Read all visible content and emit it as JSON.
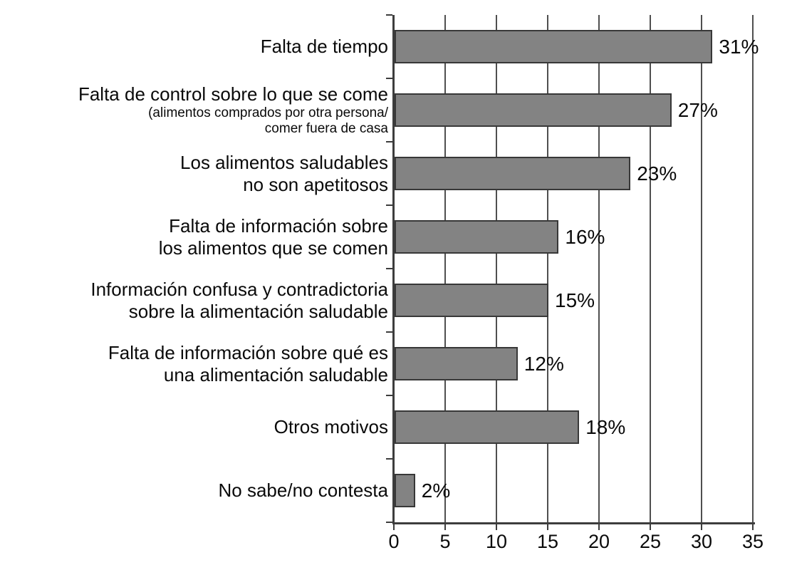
{
  "chart_data": {
    "type": "bar",
    "orientation": "horizontal",
    "title": "",
    "xlabel": "",
    "ylabel": "",
    "xlim": [
      0,
      35
    ],
    "x_ticks": [
      0,
      5,
      10,
      15,
      20,
      25,
      30,
      35
    ],
    "grid": true,
    "legend_position": "none",
    "colors": {
      "bar_fill": "#838383",
      "bar_border": "#383838",
      "axis": "#3d3d3d",
      "gridline": "#4f4f4f",
      "text": "#0a0a0a",
      "background": "#ffffff"
    },
    "categories": [
      "Falta de tiempo",
      "Falta de control sobre lo que se come (alimentos comprados por otra persona/ comer fuera de casa",
      "Los alimentos saludables no son apetitosos",
      "Falta de información sobre los alimentos que se comen",
      "Información confusa y contradictoria sobre la alimentación saludable",
      "Falta de información sobre qué es una alimentación saludable",
      "Otros motivos",
      "No sabe/no contesta"
    ],
    "values": [
      31,
      27,
      23,
      16,
      15,
      12,
      18,
      2
    ],
    "bars": [
      {
        "label_lines": [
          "Falta de tiempo"
        ],
        "sub_label_lines": [],
        "value": 31,
        "value_label": "31%"
      },
      {
        "label_lines": [
          "Falta de control sobre lo que se come"
        ],
        "sub_label_lines": [
          "(alimentos comprados por otra persona/",
          "comer fuera de casa"
        ],
        "value": 27,
        "value_label": "27%"
      },
      {
        "label_lines": [
          "Los alimentos saludables",
          "no son apetitosos"
        ],
        "sub_label_lines": [],
        "value": 23,
        "value_label": "23%"
      },
      {
        "label_lines": [
          "Falta de información sobre",
          "los alimentos que se comen"
        ],
        "sub_label_lines": [],
        "value": 16,
        "value_label": "16%"
      },
      {
        "label_lines": [
          "Información confusa y contradictoria",
          "sobre la alimentación saludable"
        ],
        "sub_label_lines": [],
        "value": 15,
        "value_label": "15%"
      },
      {
        "label_lines": [
          "Falta de información sobre qué es",
          "una alimentación saludable"
        ],
        "sub_label_lines": [],
        "value": 12,
        "value_label": "12%"
      },
      {
        "label_lines": [
          "Otros motivos"
        ],
        "sub_label_lines": [],
        "value": 18,
        "value_label": "18%"
      },
      {
        "label_lines": [
          "No sabe/no contesta"
        ],
        "sub_label_lines": [],
        "value": 2,
        "value_label": "2%"
      }
    ]
  }
}
